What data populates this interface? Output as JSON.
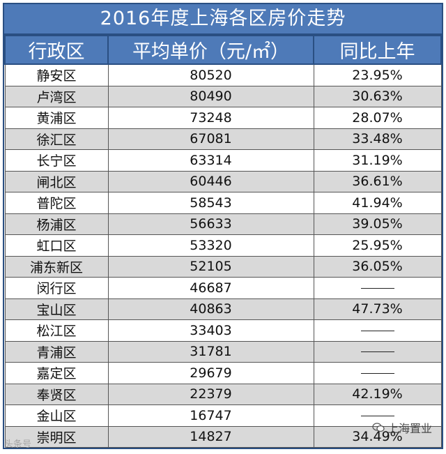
{
  "title": "2016年度上海各区房价走势",
  "headers": [
    "行政区",
    "平均单价（元/㎡）",
    "同比上年"
  ],
  "rows": [
    [
      "静安区",
      "80520",
      "23.95%"
    ],
    [
      "卢湾区",
      "80490",
      "30.63%"
    ],
    [
      "黄浦区",
      "73248",
      "28.07%"
    ],
    [
      "徐汇区",
      "67081",
      "33.48%"
    ],
    [
      "长宁区",
      "63314",
      "31.19%"
    ],
    [
      "闸北区",
      "60446",
      "36.61%"
    ],
    [
      "普陀区",
      "58543",
      "41.94%"
    ],
    [
      "杨浦区",
      "56633",
      "39.05%"
    ],
    [
      "虹口区",
      "53320",
      "25.95%"
    ],
    [
      "浦东新区",
      "52105",
      "36.05%"
    ],
    [
      "闵行区",
      "46687",
      ""
    ],
    [
      "宝山区",
      "40863",
      "47.73%"
    ],
    [
      "松江区",
      "33403",
      ""
    ],
    [
      "青浦区",
      "31781",
      ""
    ],
    [
      "嘉定区",
      "29679",
      ""
    ],
    [
      "奉贤区",
      "22379",
      "42.19%"
    ],
    [
      "金山区",
      "16747",
      ""
    ],
    [
      "崇明区",
      "14827",
      "34.49%"
    ]
  ],
  "watermark_left": "头条号",
  "watermark_right": "上海置业",
  "colors": {
    "header_bg": "#4e7ab8",
    "border": "#2a4f82",
    "alt_row": "#d9d9d9"
  }
}
